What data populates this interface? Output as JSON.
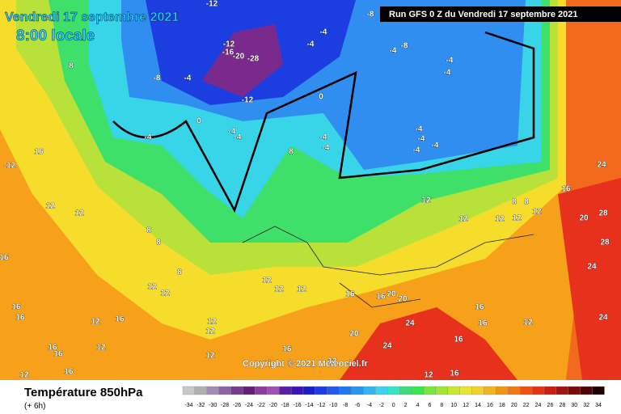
{
  "header": {
    "date": "Vendredi 17 septembre 2021",
    "time": "8:00 locale",
    "run": "Run GFS 0 Z du Vendredi 17 septembre 2021"
  },
  "copyright": "Copyright © 2021 Meteociel.fr",
  "footer": {
    "title": "Température 850hPa",
    "subtitle": "(+ 6h)"
  },
  "legend": {
    "ticks": [
      -34,
      -32,
      -30,
      -28,
      -26,
      -24,
      -22,
      -20,
      -18,
      -16,
      -14,
      -12,
      -10,
      -8,
      -6,
      -4,
      -2,
      0,
      2,
      4,
      6,
      8,
      10,
      12,
      14,
      16,
      18,
      20,
      22,
      24,
      26,
      28,
      30,
      32,
      34
    ]
  },
  "labels": [
    -12,
    -8,
    -12,
    -16,
    -20,
    -28,
    -4,
    -4,
    -8,
    -4,
    -4,
    -4,
    -8,
    -4,
    0,
    -12,
    0,
    -4,
    -4,
    -4,
    -4,
    -4,
    -4,
    -4,
    -4,
    -4,
    8,
    8,
    16,
    -12,
    24,
    16,
    12,
    12,
    12,
    12,
    8,
    8,
    12,
    12,
    12,
    28,
    20,
    28,
    24,
    8,
    8,
    16,
    8,
    12,
    12,
    12,
    12,
    12,
    16,
    16,
    20,
    20,
    16,
    16,
    24,
    24,
    16,
    16,
    12,
    16,
    12,
    12,
    20,
    12,
    16,
    24,
    16,
    16,
    12,
    12,
    16,
    12,
    16,
    12,
    16,
    12
  ]
}
